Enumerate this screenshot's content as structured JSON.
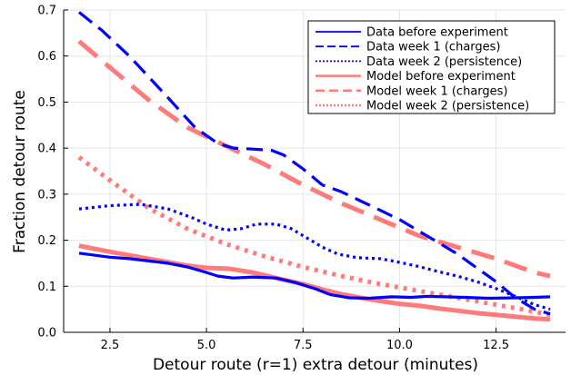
{
  "chart_data": {
    "type": "line",
    "title": "",
    "xlabel": "Detour route (r=1) extra detour (minutes)",
    "ylabel": "Fraction detour route",
    "xlim": [
      1.3,
      14.3
    ],
    "ylim": [
      0.0,
      0.7
    ],
    "x_ticks": [
      2.5,
      5.0,
      7.5,
      10.0,
      12.5
    ],
    "x_tick_labels": [
      "2.5",
      "5.0",
      "7.5",
      "10.0",
      "12.5"
    ],
    "y_ticks": [
      0.0,
      0.1,
      0.2,
      0.3,
      0.4,
      0.5,
      0.6,
      0.7
    ],
    "y_tick_labels": [
      "0.0",
      "0.1",
      "0.2",
      "0.3",
      "0.4",
      "0.5",
      "0.6",
      "0.7"
    ],
    "grid": true,
    "legend_position": "top-right",
    "series": [
      {
        "name": "Data before experiment",
        "color": "#0000ff",
        "dash": "solid",
        "x": [
          1.7,
          2.5,
          3.0,
          4.0,
          4.5,
          5.0,
          5.3,
          5.7,
          6.2,
          6.8,
          7.3,
          7.8,
          8.2,
          8.7,
          9.2,
          9.8,
          10.3,
          10.7,
          11.2,
          11.7,
          12.3,
          13.0,
          13.5,
          13.9
        ],
        "y": [
          0.172,
          0.163,
          0.16,
          0.15,
          0.142,
          0.13,
          0.122,
          0.118,
          0.12,
          0.118,
          0.108,
          0.095,
          0.082,
          0.075,
          0.074,
          0.077,
          0.076,
          0.078,
          0.077,
          0.076,
          0.074,
          0.075,
          0.076,
          0.077
        ]
      },
      {
        "name": "Data week 1 (charges)",
        "color": "#0000ff",
        "dash": "dashed",
        "x": [
          1.7,
          2.3,
          3.0,
          4.0,
          4.7,
          5.3,
          5.7,
          6.2,
          6.7,
          7.0,
          7.5,
          8.0,
          8.5,
          9.0,
          9.5,
          10.0,
          10.5,
          11.0,
          11.5,
          12.0,
          12.5,
          13.0,
          13.5,
          13.9
        ],
        "y": [
          0.695,
          0.655,
          0.6,
          0.51,
          0.445,
          0.41,
          0.4,
          0.398,
          0.395,
          0.385,
          0.355,
          0.32,
          0.305,
          0.285,
          0.265,
          0.245,
          0.22,
          0.195,
          0.17,
          0.14,
          0.11,
          0.075,
          0.05,
          0.04
        ]
      },
      {
        "name": "Data week 2 (persistence)",
        "color": "#0000ff",
        "dash": "dotted",
        "x": [
          1.7,
          2.5,
          3.3,
          4.0,
          4.6,
          5.0,
          5.5,
          5.9,
          6.3,
          6.8,
          7.2,
          7.6,
          8.0,
          8.4,
          8.9,
          9.5,
          10.0,
          10.5,
          11.0,
          11.5,
          12.0,
          12.5,
          13.0,
          13.5,
          13.9
        ],
        "y": [
          0.268,
          0.275,
          0.278,
          0.268,
          0.25,
          0.235,
          0.222,
          0.225,
          0.235,
          0.235,
          0.225,
          0.205,
          0.185,
          0.17,
          0.162,
          0.16,
          0.152,
          0.143,
          0.132,
          0.122,
          0.11,
          0.095,
          0.078,
          0.06,
          0.05
        ]
      },
      {
        "name": "Model before experiment",
        "color": "#ff7b7b",
        "dash": "solid",
        "x": [
          1.7,
          2.5,
          3.5,
          4.5,
          5.0,
          5.6,
          6.2,
          6.8,
          7.5,
          8.0,
          8.5,
          9.0,
          9.5,
          10.0,
          10.5,
          11.0,
          11.5,
          12.0,
          12.5,
          13.0,
          13.5,
          13.9
        ],
        "y": [
          0.188,
          0.175,
          0.16,
          0.145,
          0.14,
          0.138,
          0.13,
          0.118,
          0.105,
          0.093,
          0.083,
          0.075,
          0.068,
          0.062,
          0.058,
          0.052,
          0.047,
          0.042,
          0.038,
          0.034,
          0.03,
          0.028
        ]
      },
      {
        "name": "Model week 1 (charges)",
        "color": "#ff7b7b",
        "dash": "dashed",
        "x": [
          1.7,
          2.5,
          3.5,
          4.5,
          5.5,
          6.5,
          7.5,
          8.5,
          9.5,
          10.5,
          11.5,
          12.5,
          13.5,
          13.9
        ],
        "y": [
          0.632,
          0.575,
          0.505,
          0.445,
          0.405,
          0.365,
          0.32,
          0.28,
          0.245,
          0.21,
          0.185,
          0.16,
          0.13,
          0.122
        ]
      },
      {
        "name": "Model week 2 (persistence)",
        "color": "#ff7b7b",
        "dash": "dotted",
        "x": [
          1.7,
          2.5,
          3.5,
          4.5,
          5.5,
          6.5,
          7.5,
          8.5,
          9.5,
          10.5,
          11.5,
          12.5,
          13.5,
          13.9
        ],
        "y": [
          0.38,
          0.33,
          0.27,
          0.225,
          0.192,
          0.165,
          0.142,
          0.122,
          0.105,
          0.09,
          0.075,
          0.06,
          0.045,
          0.038
        ]
      }
    ]
  }
}
